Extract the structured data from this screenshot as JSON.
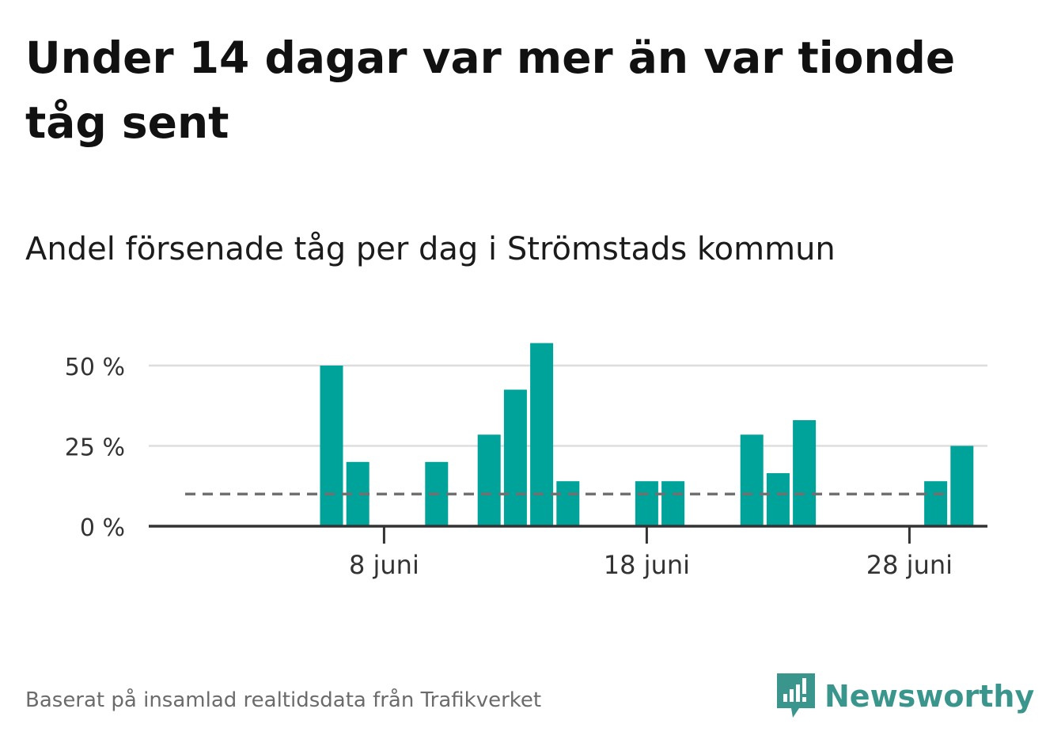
{
  "title": "Under 14 dagar var mer än var tionde tåg sent",
  "subtitle": "Andel försenade tåg per dag i Strömstads kommun",
  "footer": "Baserat på insamlad realtidsdata från Trafikverket",
  "brand": {
    "name": "Newsworthy",
    "icon": "newsworthy-logo-icon",
    "color": "#3a958c"
  },
  "colors": {
    "bar": "#00a39a",
    "reference": "#707070",
    "grid": "#dddddd",
    "axis": "#333333"
  },
  "chart_data": {
    "type": "bar",
    "title": "Andel försenade tåg per dag i Strömstads kommun",
    "xlabel": "",
    "ylabel": "",
    "ylim": [
      0,
      60
    ],
    "yticks": [
      0,
      25,
      50
    ],
    "ytick_labels": [
      "0 %",
      "25 %",
      "50 %"
    ],
    "x_days": [
      1,
      2,
      3,
      4,
      5,
      6,
      7,
      8,
      9,
      10,
      11,
      12,
      13,
      14,
      15,
      16,
      17,
      18,
      19,
      20,
      21,
      22,
      23,
      24,
      25,
      26,
      27,
      28,
      29,
      30
    ],
    "values": [
      0,
      0,
      0,
      0,
      0,
      50,
      20,
      0,
      0,
      20,
      0,
      28.5,
      42.5,
      57,
      14,
      0,
      0,
      14,
      14,
      0,
      0,
      28.5,
      16.5,
      33,
      0,
      0,
      0,
      0,
      14,
      25
    ],
    "xticks": [
      8,
      18,
      28
    ],
    "xtick_labels": [
      "8 juni",
      "18 juni",
      "28 juni"
    ],
    "reference_line": 10,
    "reference_label": "",
    "grid": true
  }
}
